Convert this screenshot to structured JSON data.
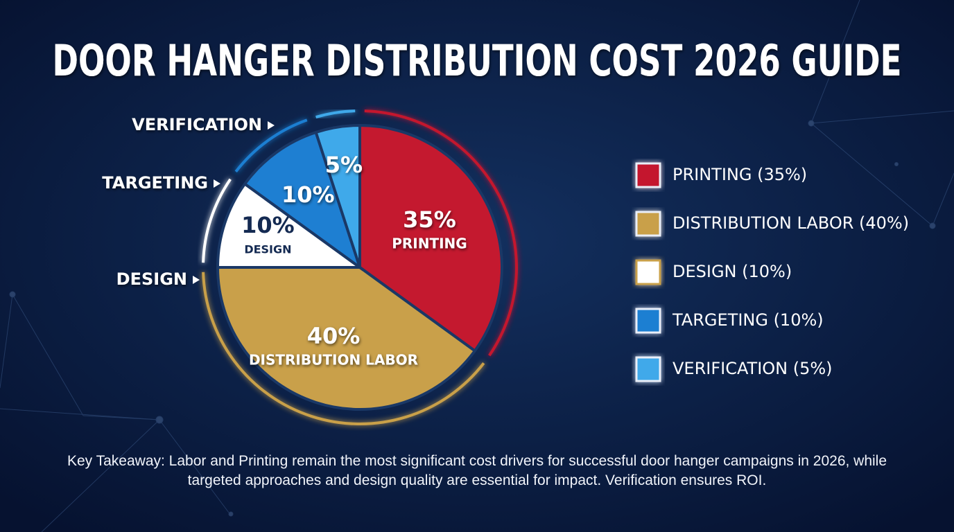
{
  "chart_data": {
    "type": "pie",
    "title": "DOOR HANGER DISTRIBUTION COST 2026 GUIDE",
    "categories": [
      "PRINTING",
      "DISTRIBUTION LABOR",
      "DESIGN",
      "TARGETING",
      "VERIFICATION"
    ],
    "values": [
      35,
      40,
      10,
      10,
      5
    ],
    "value_labels": [
      "35%",
      "40%",
      "10%",
      "10%",
      "5%"
    ],
    "colors": [
      "#c4192f",
      "#c9a04a",
      "#ffffff",
      "#1e7fd2",
      "#3fa9ea"
    ],
    "legend_labels": [
      "PRINTING (35%)",
      "DISTRIBUTION LABOR (40%)",
      "DESIGN (10%)",
      "TARGETING (10%)",
      "VERIFICATION (5%)"
    ],
    "legend_position": "right",
    "note": "Key Takeaway: Labor and Printing remain the most significant cost drivers for successful door hanger campaigns in 2026, while targeted approaches and design quality are essential for impact. Verification ensures ROI."
  }
}
